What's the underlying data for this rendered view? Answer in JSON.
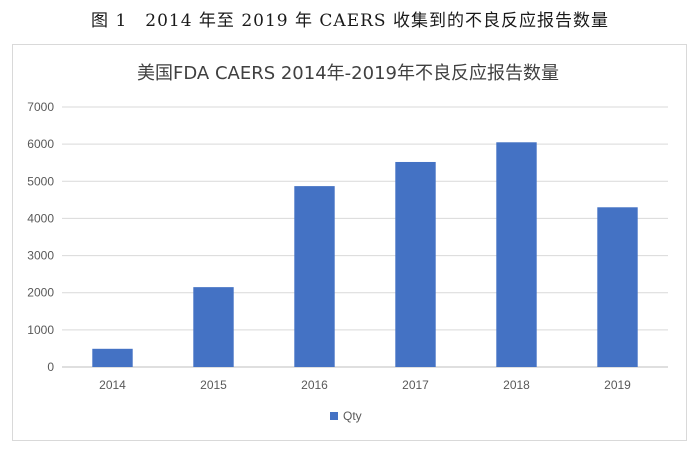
{
  "caption": "图 1　2014 年至 2019 年 CAERS 收集到的不良反应报告数量",
  "chart_data": {
    "type": "bar",
    "title": "美国FDA CAERS 2014年-2019年不良反应报告数量",
    "categories": [
      "2014",
      "2015",
      "2016",
      "2017",
      "2018",
      "2019"
    ],
    "series": [
      {
        "name": "Qty",
        "values": [
          490,
          2150,
          4870,
          5520,
          6050,
          4300
        ],
        "color": "#4472c4"
      }
    ],
    "y_ticks": [
      "0",
      "1000",
      "2000",
      "3000",
      "4000",
      "5000",
      "6000",
      "7000"
    ],
    "ylim": [
      0,
      7000
    ],
    "grid": true,
    "legend_position": "bottom"
  }
}
